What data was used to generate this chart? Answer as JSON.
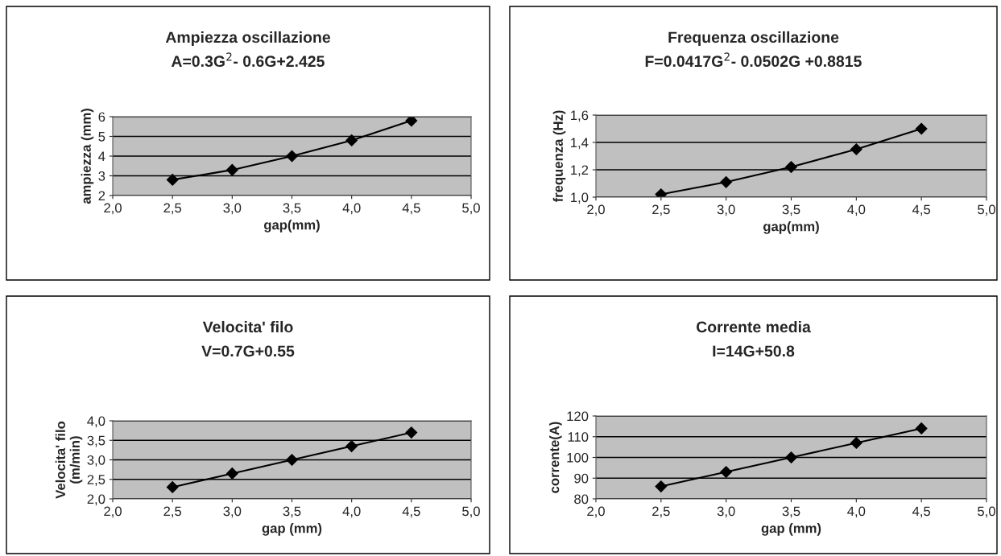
{
  "chart_data": [
    {
      "type": "line",
      "title": "Ampiezza oscillazione",
      "subtitle": "A=0.3G$^{2}$- 0.6G+2.425",
      "xlabel": "gap(mm)",
      "ylabel": "ampiezza (mm)",
      "x": [
        2.5,
        3.0,
        3.5,
        4.0,
        4.5
      ],
      "series": [
        {
          "color": "#000000",
          "values": [
            2.8,
            3.3,
            4.0,
            4.8,
            5.8
          ]
        }
      ],
      "xlim": [
        2.0,
        5.0
      ],
      "xticks": [
        {
          "value": 2.0,
          "label": "2,0"
        },
        {
          "value": 2.5,
          "label": "2,5"
        },
        {
          "value": 3.0,
          "label": "3,0"
        },
        {
          "value": 3.5,
          "label": "3,5"
        },
        {
          "value": 4.0,
          "label": "4,0"
        },
        {
          "value": 4.5,
          "label": "4,5"
        },
        {
          "value": 5.0,
          "label": "5,0"
        }
      ],
      "ylim": [
        2,
        6
      ],
      "yticks": [
        2,
        3,
        4,
        5,
        6
      ],
      "grid": "y",
      "marker": "diamond",
      "line_style": "solid",
      "legend": false
    },
    {
      "type": "line",
      "title": "Frequenza oscillazione",
      "subtitle": "F=0.0417G$^{2}$- 0.0502G +0.8815",
      "xlabel": "gap(mm)",
      "ylabel": "frequenza (Hz)",
      "x": [
        2.5,
        3.0,
        3.5,
        4.0,
        4.5
      ],
      "series": [
        {
          "color": "#000000",
          "values": [
            1.02,
            1.11,
            1.22,
            1.35,
            1.5
          ]
        }
      ],
      "xlim": [
        2.0,
        5.0
      ],
      "xticks": [
        {
          "value": 2.0,
          "label": "2,0"
        },
        {
          "value": 2.5,
          "label": "2,5"
        },
        {
          "value": 3.0,
          "label": "3,0"
        },
        {
          "value": 3.5,
          "label": "3,5"
        },
        {
          "value": 4.0,
          "label": "4,0"
        },
        {
          "value": 4.5,
          "label": "4,5"
        },
        {
          "value": 5.0,
          "label": "5,0"
        }
      ],
      "ylim": [
        1.0,
        1.6
      ],
      "yticks": [
        {
          "value": 1.0,
          "label": "1,0"
        },
        {
          "value": 1.2,
          "label": "1,2"
        },
        {
          "value": 1.4,
          "label": "1,4"
        },
        {
          "value": 1.6,
          "label": "1,6"
        }
      ],
      "grid": "y",
      "marker": "diamond",
      "line_style": "solid",
      "legend": false
    },
    {
      "type": "line",
      "title": "Velocita' filo",
      "subtitle": "V=0.7G+0.55",
      "xlabel": "gap (mm)",
      "ylabel": "Velocita' filo\n(m/min)",
      "x": [
        2.5,
        3.0,
        3.5,
        4.0,
        4.5
      ],
      "series": [
        {
          "color": "#000000",
          "values": [
            2.3,
            2.65,
            3.0,
            3.35,
            3.7
          ]
        }
      ],
      "xlim": [
        2.0,
        5.0
      ],
      "xticks": [
        {
          "value": 2.0,
          "label": "2,0"
        },
        {
          "value": 2.5,
          "label": "2,5"
        },
        {
          "value": 3.0,
          "label": "3,0"
        },
        {
          "value": 3.5,
          "label": "3,5"
        },
        {
          "value": 4.0,
          "label": "4,0"
        },
        {
          "value": 4.5,
          "label": "4,5"
        },
        {
          "value": 5.0,
          "label": "5,0"
        }
      ],
      "ylim": [
        2.0,
        4.0
      ],
      "yticks": [
        {
          "value": 2.0,
          "label": "2,0"
        },
        {
          "value": 2.5,
          "label": "2,5"
        },
        {
          "value": 3.0,
          "label": "3,0"
        },
        {
          "value": 3.5,
          "label": "3,5"
        },
        {
          "value": 4.0,
          "label": "4,0"
        }
      ],
      "grid": "y",
      "marker": "diamond",
      "line_style": "solid",
      "legend": false
    },
    {
      "type": "line",
      "title": "Corrente media",
      "subtitle": "I=14G+50.8",
      "xlabel": "gap (mm)",
      "ylabel": "corrente(A)",
      "x": [
        2.5,
        3.0,
        3.5,
        4.0,
        4.5
      ],
      "series": [
        {
          "color": "#000000",
          "values": [
            86,
            93,
            100,
            107,
            114
          ]
        }
      ],
      "xlim": [
        2.0,
        5.0
      ],
      "xticks": [
        {
          "value": 2.0,
          "label": "2,0"
        },
        {
          "value": 2.5,
          "label": "2,5"
        },
        {
          "value": 3.0,
          "label": "3,0"
        },
        {
          "value": 3.5,
          "label": "3,5"
        },
        {
          "value": 4.0,
          "label": "4,0"
        },
        {
          "value": 4.5,
          "label": "4,5"
        },
        {
          "value": 5.0,
          "label": "5,0"
        }
      ],
      "ylim": [
        80,
        120
      ],
      "yticks": [
        80,
        90,
        100,
        110,
        120
      ],
      "grid": "y",
      "marker": "diamond",
      "line_style": "solid",
      "legend": false
    }
  ]
}
